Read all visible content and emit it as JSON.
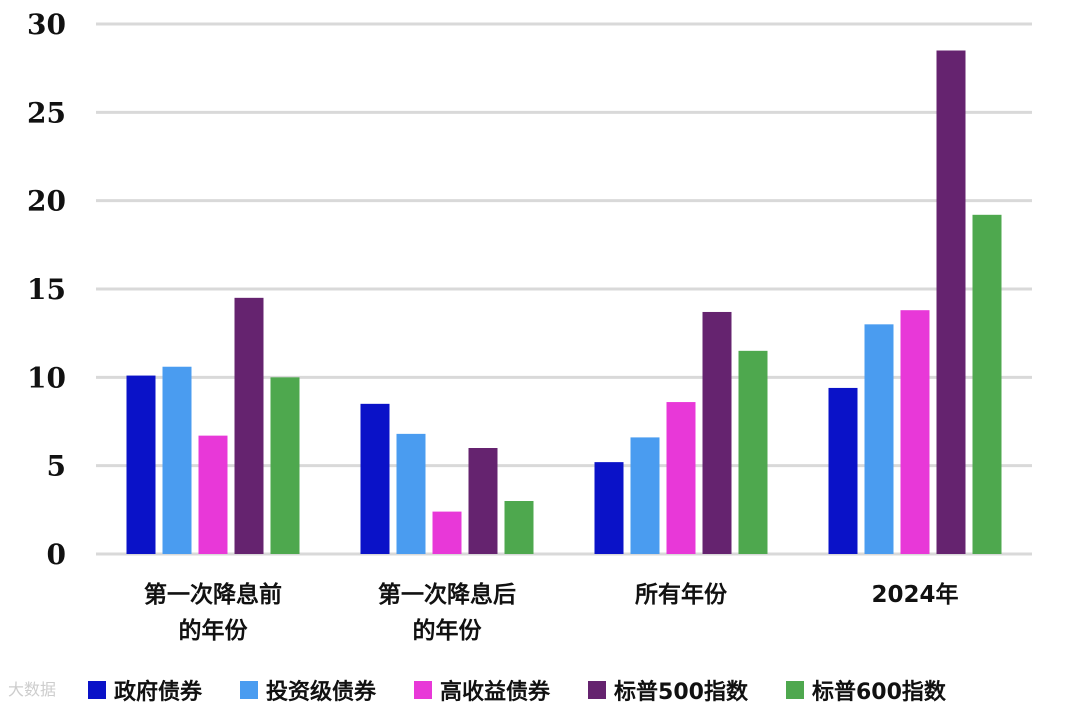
{
  "chart_data": {
    "type": "bar",
    "categories": [
      "第一次降息前\n的年份",
      "第一次降息后\n的年份",
      "所有年份",
      "2024年"
    ],
    "series": [
      {
        "name": "政府债券",
        "color": "#0a12c8",
        "values": [
          10.1,
          8.5,
          5.2,
          9.4
        ]
      },
      {
        "name": "投资级债券",
        "color": "#4a9cf0",
        "values": [
          10.6,
          6.8,
          6.6,
          13.0
        ]
      },
      {
        "name": "高收益债券",
        "color": "#e838d8",
        "values": [
          6.7,
          2.4,
          8.6,
          13.8
        ]
      },
      {
        "name": "标普500指数",
        "color": "#65236f",
        "values": [
          14.5,
          6.0,
          13.7,
          28.5
        ]
      },
      {
        "name": "标普600指数",
        "color": "#4ea84e",
        "values": [
          10.0,
          3.0,
          11.5,
          19.2
        ]
      }
    ],
    "ylim": [
      0,
      30
    ],
    "yticks": [
      0,
      5,
      10,
      15,
      20,
      25,
      30
    ],
    "grid": true,
    "legend": "bottom",
    "title": "",
    "xlabel": "",
    "ylabel": ""
  },
  "watermark": "大数据"
}
